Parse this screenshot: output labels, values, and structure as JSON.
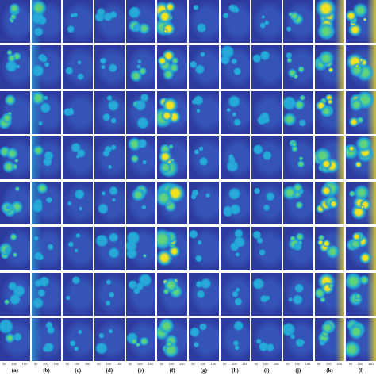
{
  "figure": {
    "columns": [
      "(a)",
      "(b)",
      "(c)",
      "(d)",
      "(e)",
      "(f)",
      "(g)",
      "(h)",
      "(i)",
      "(j)",
      "(k)",
      "(l)"
    ],
    "axis_ticks": [
      "50",
      "100",
      "150"
    ],
    "rows": 8
  }
}
